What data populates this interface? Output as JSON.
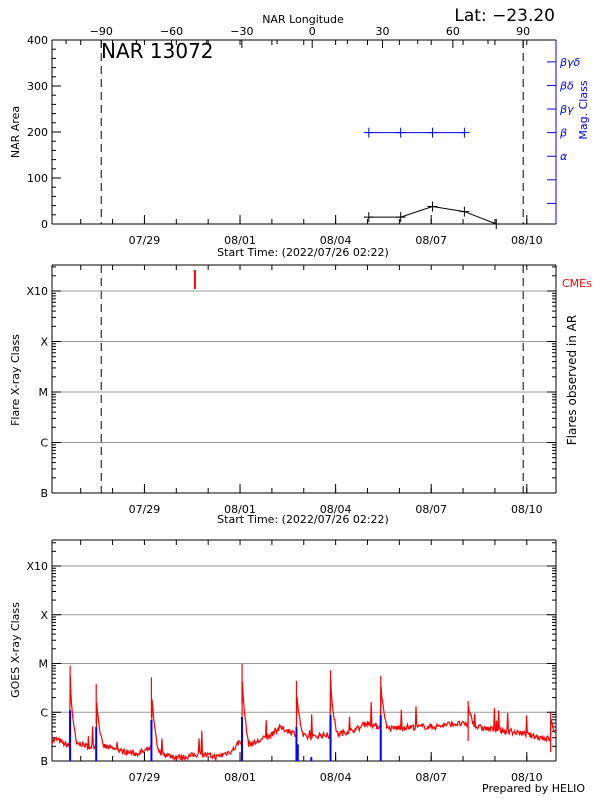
{
  "chart_data": [
    {
      "type": "line",
      "title": "NAR 13072",
      "latitude_label": "Lat: −23.20",
      "top_axis_label": "NAR Longitude",
      "top_axis_ticks": [
        "-90",
        "-60",
        "-30",
        "0",
        "30",
        "60",
        "90"
      ],
      "top_axis_range": [
        -111,
        104
      ],
      "limb_markers_longitude": [
        -90,
        90
      ],
      "ylabel": "NAR Area",
      "ylim": [
        0,
        400
      ],
      "yticks": [
        "0",
        "100",
        "200",
        "300",
        "400"
      ],
      "xlabel": "Start Time: (2022/07/26 02:22)",
      "xticks": [
        "07/29",
        "08/01",
        "08/04",
        "08/07",
        "08/10"
      ],
      "xrange": [
        "2022-07-26T02:22",
        "2022-08-10T22:00"
      ],
      "area_series": {
        "color": "#000000",
        "x": [
          "2022-08-05T01:00",
          "2022-08-06T01:00",
          "2022-08-07T01:00",
          "2022-08-08T01:00",
          "2022-08-09T01:00"
        ],
        "values": [
          15,
          15,
          38,
          27,
          0
        ]
      },
      "mag_class_axis": {
        "label": "Mag. Class",
        "color": "#0000ff",
        "tick_labels": [
          "",
          "",
          "α",
          "β",
          "βγ",
          "βδ",
          "βγδ"
        ],
        "range": [
          0,
          7.8
        ]
      },
      "mag_class_series": {
        "color": "#0000ff",
        "x": [
          "2022-08-05T01:00",
          "2022-08-06T01:00",
          "2022-08-07T01:00",
          "2022-08-08T01:00"
        ],
        "values": [
          "β",
          "β",
          "β",
          "β"
        ]
      }
    },
    {
      "type": "scatter",
      "ylabel": "Flare X-ray Class",
      "right_label": "Flares observed in AR",
      "yticks": [
        "B",
        "C",
        "M",
        "X",
        "X10"
      ],
      "xlabel": "Start Time: (2022/07/26 02:22)",
      "xticks": [
        "07/29",
        "08/01",
        "08/04",
        "08/07",
        "08/10"
      ],
      "cme_label": "CMEs",
      "cme_color": "#ff0000",
      "cmes": [
        "2022-07-30T14:00"
      ],
      "flares": [],
      "grid": true
    },
    {
      "type": "line",
      "ylabel": "GOES X-ray Class",
      "yticks": [
        "B",
        "C",
        "M",
        "X",
        "X10"
      ],
      "xticks": [
        "07/29",
        "08/01",
        "08/04",
        "08/07",
        "08/10"
      ],
      "footer": "Prepared by HELIO",
      "grid": true,
      "series_color": "#ff0000",
      "baseline_step_hours": 6,
      "baseline_start": "2022-07-26T00:00",
      "baseline": [
        "B2.4",
        "B2.8",
        "B2.2",
        "B2.0",
        "B2.3",
        "B1.9",
        "B2.1",
        "B2.0",
        "B1.8",
        "B1.6",
        "B1.5",
        "B1.4",
        "B1.6",
        "B1.9",
        "B1.5",
        "B1.3",
        "B1.2",
        "B1.2",
        "B1.3",
        "B1.4",
        "B1.3",
        "B1.2",
        "B1.4",
        "B1.6",
        "B2.6",
        "B2.2",
        "B2.4",
        "B2.9",
        "B3.4",
        "B4.8",
        "B4.2",
        "B3.6",
        "B3.2",
        "B3.0",
        "B3.4",
        "B3.3",
        "B3.5",
        "B3.8",
        "B4.2",
        "B4.8",
        "B6.0",
        "B5.2",
        "B4.8",
        "B4.6",
        "B4.8",
        "B5.0",
        "B4.9",
        "B5.1",
        "B5.0",
        "B5.2",
        "B5.6",
        "B5.8",
        "B5.7",
        "B5.3",
        "B4.9",
        "B4.6",
        "B4.4",
        "B4.2",
        "B3.9",
        "B3.8",
        "B3.5",
        "B3.2",
        "B3.0",
        "B2.8",
        "B3.4"
      ],
      "peaks": [
        {
          "time": "2022-07-26T16:00",
          "class": "C9.0"
        },
        {
          "time": "2022-07-27T11:40",
          "class": "C3.8"
        },
        {
          "time": "2022-07-29T05:15",
          "class": "C5.2"
        },
        {
          "time": "2022-08-01T01:30",
          "class": "C9.8"
        },
        {
          "time": "2022-08-02T18:30",
          "class": "C4.4"
        },
        {
          "time": "2022-08-03T20:10",
          "class": "C7.2"
        },
        {
          "time": "2022-08-05T10:00",
          "class": "C5.6"
        },
        {
          "time": "2022-08-08T03:50",
          "class": "C1.7"
        },
        {
          "time": "2022-08-10T18:00",
          "class": "C1.0"
        }
      ],
      "blue_markers_color": "#0000ff",
      "blue_markers": [
        {
          "time": "2022-07-26T16:00",
          "class": "C1.1"
        },
        {
          "time": "2022-07-27T11:40",
          "class": "B5.0"
        },
        {
          "time": "2022-07-29T05:15",
          "class": "B7.0"
        },
        {
          "time": "2022-08-01T01:30",
          "class": "B8.0"
        },
        {
          "time": "2022-08-02T18:30",
          "class": "B5.0"
        },
        {
          "time": "2022-08-02T19:30",
          "class": "B2.2"
        },
        {
          "time": "2022-08-03T05:40",
          "class": "B1.2"
        },
        {
          "time": "2022-08-03T20:10",
          "class": "B8.7"
        },
        {
          "time": "2022-08-05T10:00",
          "class": "B8.7"
        }
      ]
    }
  ]
}
